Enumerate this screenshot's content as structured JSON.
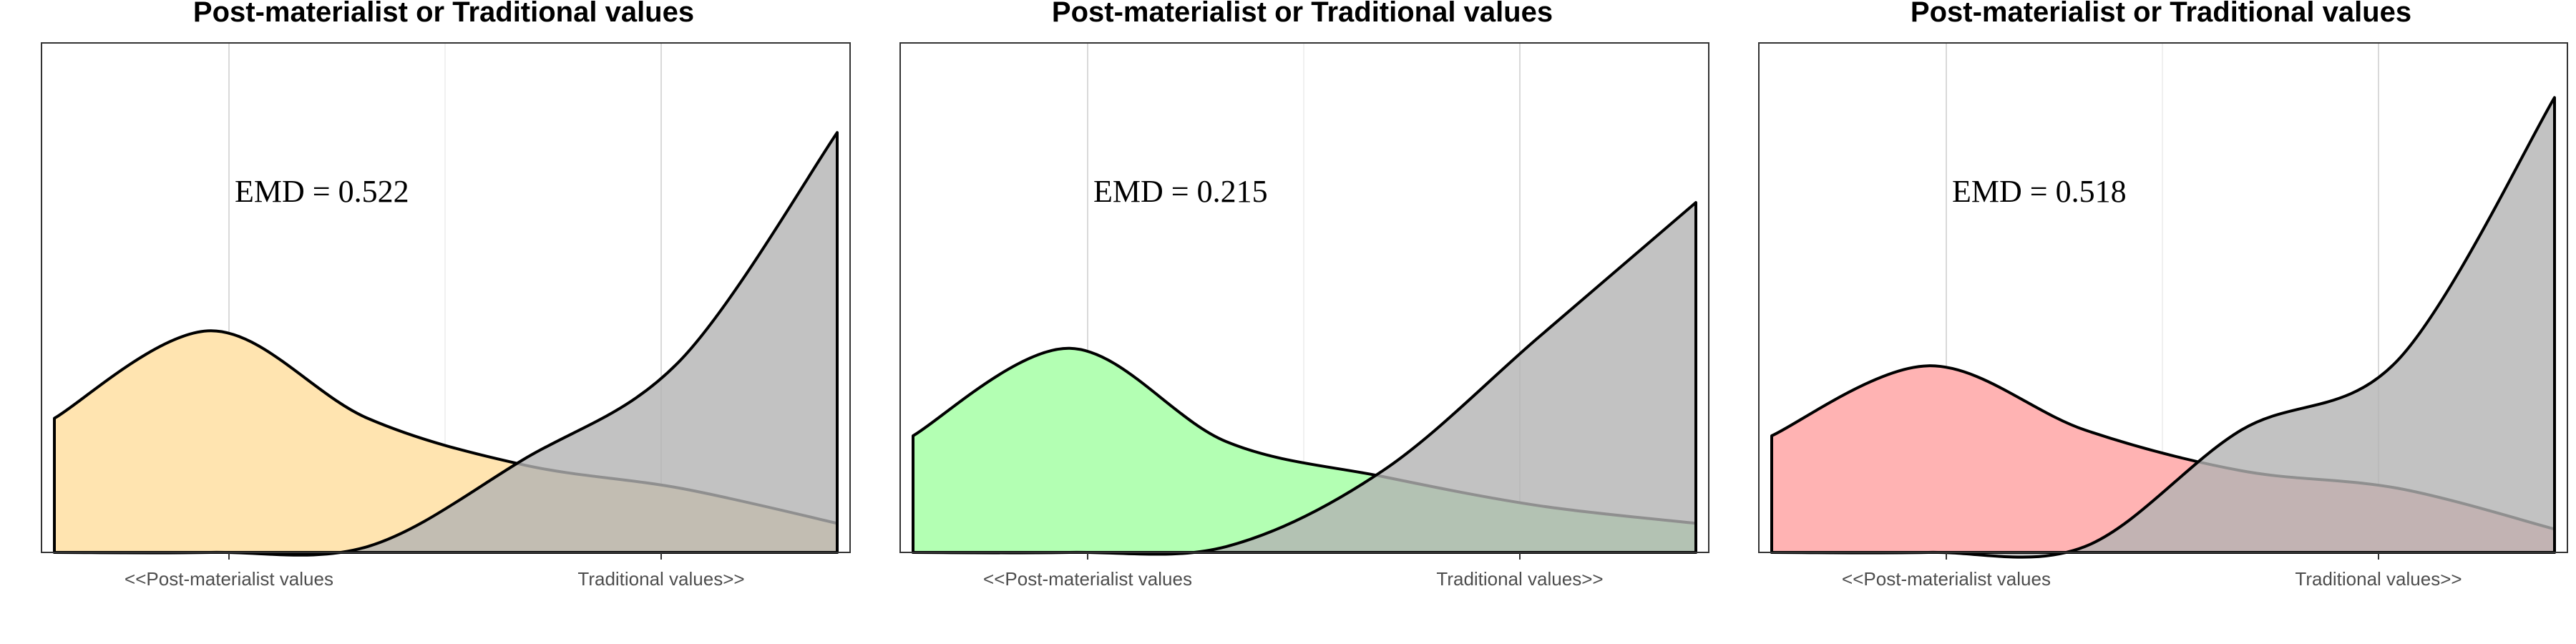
{
  "chart_data": [
    {
      "type": "area",
      "title": "Post-materialist or Traditional values",
      "x_tick_labels": [
        "<<Post-materialist values",
        "Traditional values>>"
      ],
      "annotation": "EMD = 0.522",
      "grid": true,
      "series": [
        {
          "color": "#FFE4B0",
          "x": [
            0.0,
            0.2,
            0.4,
            0.6,
            0.8,
            1.0
          ],
          "density": [
            0.23,
            0.38,
            0.23,
            0.15,
            0.11,
            0.05
          ]
        },
        {
          "color": "#B3B3B3",
          "x": [
            0.0,
            0.2,
            0.4,
            0.6,
            0.8,
            1.0
          ],
          "density": [
            0.0,
            0.0,
            0.01,
            0.16,
            0.33,
            0.72
          ]
        }
      ]
    },
    {
      "type": "area",
      "title": "Post-materialist or Traditional values",
      "x_tick_labels": [
        "<<Post-materialist values",
        "Traditional values>>"
      ],
      "annotation": "EMD = 0.215",
      "grid": true,
      "series": [
        {
          "color": "#B3FFB3",
          "x": [
            0.0,
            0.2,
            0.4,
            0.6,
            0.8,
            1.0
          ],
          "density": [
            0.2,
            0.35,
            0.19,
            0.13,
            0.08,
            0.05
          ]
        },
        {
          "color": "#B3B3B3",
          "x": [
            0.0,
            0.2,
            0.4,
            0.6,
            0.8,
            1.0
          ],
          "density": [
            0.0,
            0.0,
            0.01,
            0.14,
            0.37,
            0.6
          ]
        }
      ]
    },
    {
      "type": "area",
      "title": "Post-materialist or Traditional values",
      "x_tick_labels": [
        "<<Post-materialist values",
        "Traditional values>>"
      ],
      "annotation": "EMD = 0.518",
      "grid": true,
      "series": [
        {
          "color": "#FFB3B3",
          "x": [
            0.0,
            0.2,
            0.4,
            0.6,
            0.8,
            1.0
          ],
          "density": [
            0.2,
            0.32,
            0.21,
            0.14,
            0.11,
            0.04
          ]
        },
        {
          "color": "#B3B3B3",
          "x": [
            0.0,
            0.2,
            0.4,
            0.6,
            0.8,
            1.0
          ],
          "density": [
            0.0,
            0.0,
            0.01,
            0.21,
            0.33,
            0.78
          ]
        }
      ]
    }
  ]
}
